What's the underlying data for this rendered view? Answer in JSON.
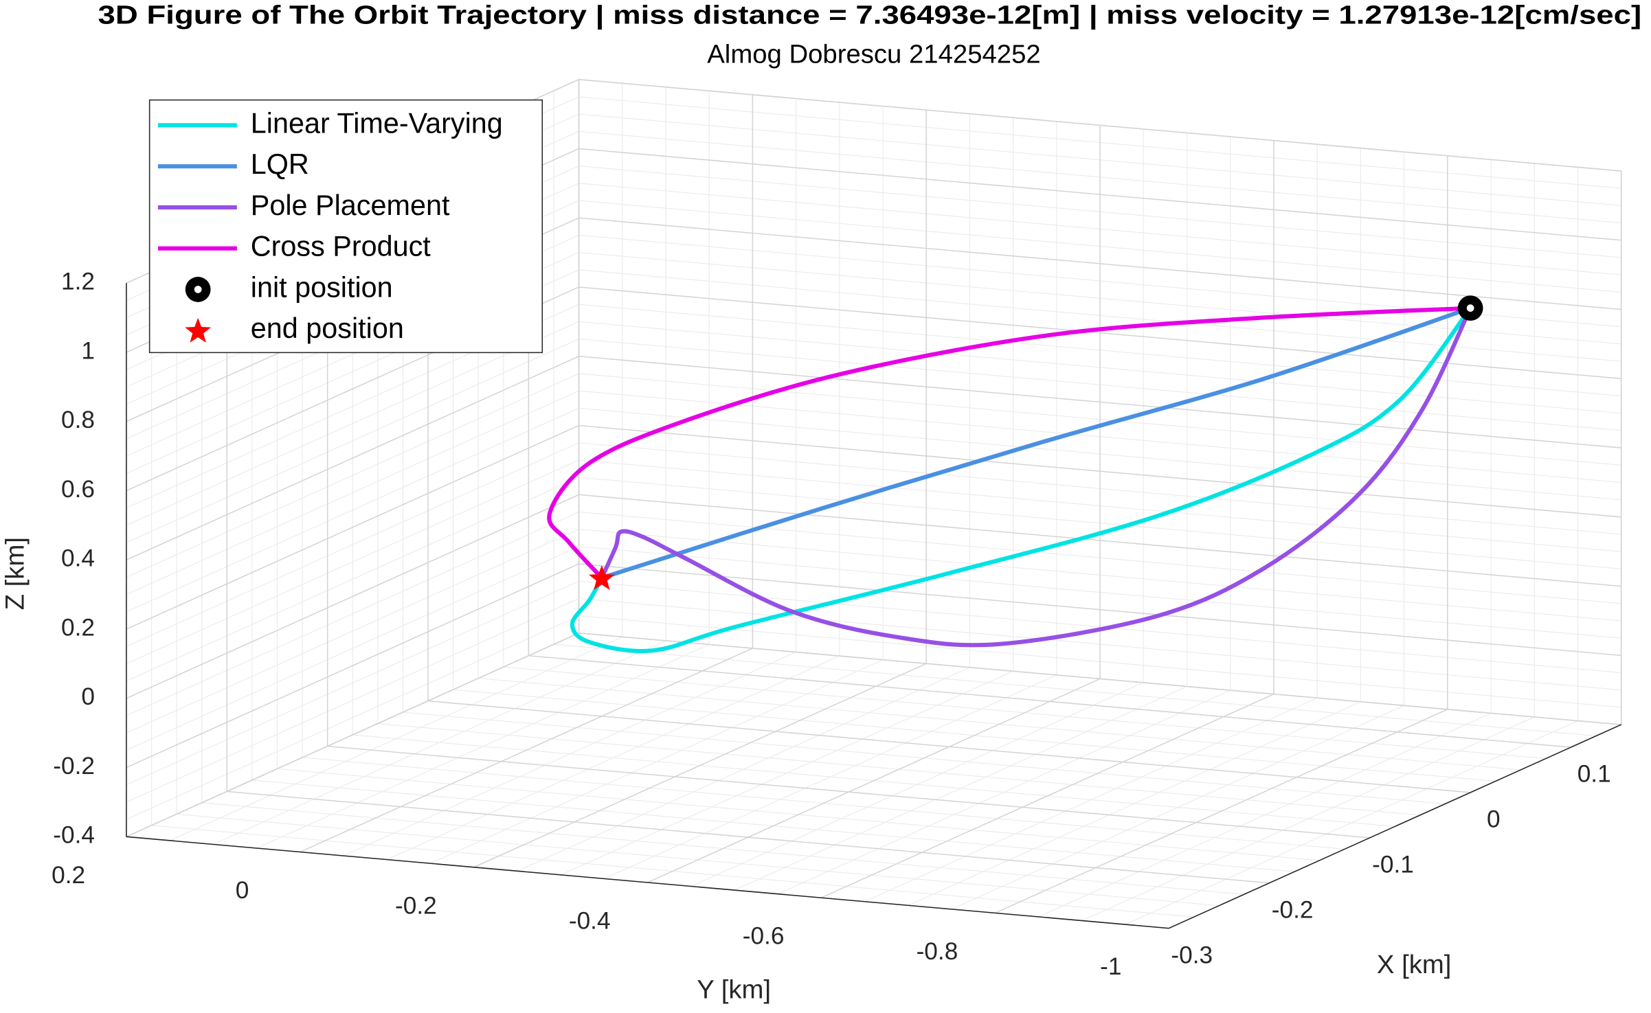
{
  "chart_data": {
    "type": "line3d",
    "title": "3D Figure of The Orbit Trajectory | miss distance = 7.36493e-12[m] | miss velocity = 1.27913e-12[cm/sec]",
    "subtitle": "Almog Dobrescu 214254252",
    "xlabel": "X [km]",
    "ylabel": "Y [km]",
    "zlabel": "Z [km]",
    "xlim": [
      -0.3,
      0.15
    ],
    "ylim": [
      -1,
      0.2
    ],
    "zlim": [
      -0.4,
      1.2
    ],
    "xticks": [
      -0.3,
      -0.2,
      -0.1,
      0,
      0.1
    ],
    "yticks": [
      -1,
      -0.8,
      -0.6,
      -0.4,
      -0.2,
      0,
      0.2
    ],
    "zticks": [
      -0.4,
      -0.2,
      0,
      0.2,
      0.4,
      0.6,
      0.8,
      1,
      1.2
    ],
    "grid": true,
    "minor_grid": true,
    "legend": "northwest",
    "series": [
      {
        "name": "Linear Time-Varying",
        "color": "#00e3e3",
        "x": [
          0,
          0,
          0,
          0,
          0,
          0,
          0,
          0,
          0,
          0,
          0
        ],
        "y": [
          -1,
          -0.919,
          -0.822,
          -0.641,
          -0.398,
          -0.156,
          -0.059,
          0.014,
          0.034,
          0.014,
          0
        ],
        "z": [
          1,
          0.717,
          0.543,
          0.321,
          0.1,
          -0.106,
          -0.197,
          -0.189,
          -0.141,
          -0.067,
          0
        ]
      },
      {
        "name": "LQR",
        "color": "#4a90e2",
        "x": [
          0,
          0,
          0,
          0,
          0
        ],
        "y": [
          -1,
          -0.762,
          -0.507,
          -0.253,
          0
        ],
        "z": [
          1,
          0.743,
          0.504,
          0.256,
          0
        ]
      },
      {
        "name": "Pole Placement",
        "color": "#9650e6",
        "x": [
          0,
          0,
          0,
          0,
          0,
          0,
          0,
          0,
          0,
          0,
          0,
          0,
          0
        ],
        "y": [
          -1,
          -0.944,
          -0.871,
          -0.762,
          -0.641,
          -0.459,
          -0.338,
          -0.216,
          -0.095,
          -0.047,
          -0.022,
          -0.016,
          0
        ],
        "z": [
          1,
          0.692,
          0.432,
          0.195,
          0.032,
          -0.09,
          -0.096,
          -0.047,
          0.079,
          0.129,
          0.138,
          0.092,
          0
        ]
      },
      {
        "name": "Cross Product",
        "color": "#e600e6",
        "x": [
          0,
          0,
          0,
          0,
          0,
          0,
          0,
          0,
          0
        ],
        "y": [
          -1,
          -0.762,
          -0.519,
          -0.277,
          -0.095,
          0.014,
          0.06,
          0.038,
          0
        ],
        "z": [
          1,
          0.92,
          0.817,
          0.651,
          0.474,
          0.329,
          0.172,
          0.095,
          0
        ]
      }
    ],
    "markers": [
      {
        "name": "init position",
        "color": "#000000",
        "symbol": "circle",
        "x": 0,
        "y": -1,
        "z": 1
      },
      {
        "name": "end position",
        "color": "#ff0000",
        "symbol": "star",
        "x": 0,
        "y": 0,
        "z": 0
      }
    ]
  }
}
